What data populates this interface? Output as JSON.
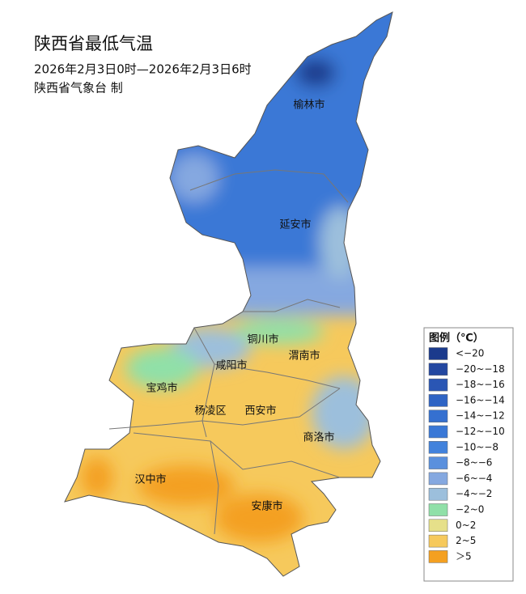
{
  "header": {
    "title": "陕西省最低气温",
    "subtitle": "2026年2月3日0时—2026年2月3日6时",
    "producer": "陕西省气象台 制"
  },
  "cities": [
    "榆林市",
    "延安市",
    "铜川市",
    "渭南市",
    "咸阳市",
    "宝鸡市",
    "杨凌区",
    "西安市",
    "商洛市",
    "汉中市",
    "安康市"
  ],
  "legend": {
    "title": "图例（℃）",
    "items": [
      {
        "label": "<−20",
        "color": "#1b3a8c"
      },
      {
        "label": "−20~−18",
        "color": "#2347a0"
      },
      {
        "label": "−18~−16",
        "color": "#2a56b4"
      },
      {
        "label": "−16~−14",
        "color": "#2f64c4"
      },
      {
        "label": "−14~−12",
        "color": "#3570d0"
      },
      {
        "label": "−12~−10",
        "color": "#3a78d6"
      },
      {
        "label": "−10~−8",
        "color": "#4282dc"
      },
      {
        "label": "−8~−6",
        "color": "#5a90dd"
      },
      {
        "label": "−6~−4",
        "color": "#85a8e0"
      },
      {
        "label": "−4~−2",
        "color": "#9cbfdc"
      },
      {
        "label": "−2~0",
        "color": "#90e0a8"
      },
      {
        "label": "0~2",
        "color": "#e6e08a"
      },
      {
        "label": "2~5",
        "color": "#f6c95c"
      },
      {
        "label": "＞5",
        "color": "#f4a021"
      }
    ]
  }
}
